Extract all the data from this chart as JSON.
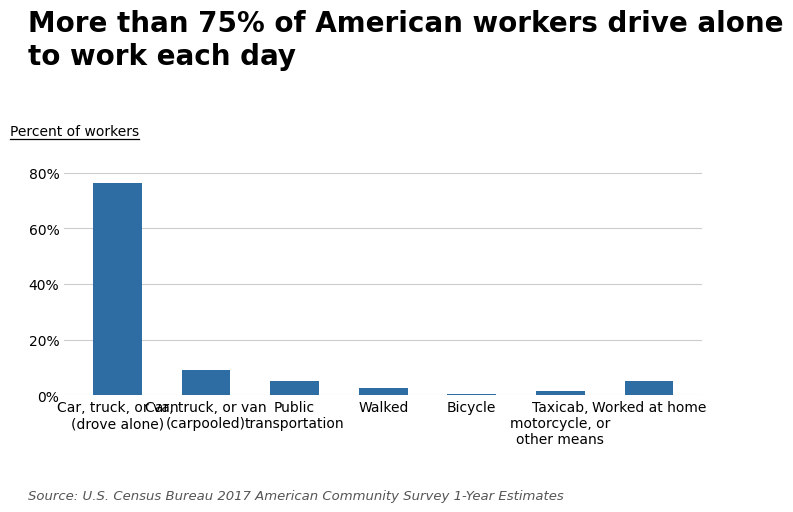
{
  "categories": [
    "Car, truck, or van\n(drove alone)",
    "Car, truck, or van\n(carpooled)",
    "Public\ntransportation",
    "Walked",
    "Bicycle",
    "Taxicab,\nmotorcycle, or\nother means",
    "Worked at home"
  ],
  "values": [
    76.4,
    9.0,
    5.1,
    2.8,
    0.6,
    1.5,
    5.0
  ],
  "bar_color": "#2E6DA4",
  "title": "More than 75% of American workers drive alone\nto work each day",
  "ylabel": "Percent of workers",
  "yticks": [
    0,
    20,
    40,
    60,
    80
  ],
  "ylim": [
    0,
    84
  ],
  "source": "Source: U.S. Census Bureau 2017 American Community Survey 1-Year Estimates",
  "background_color": "#ffffff",
  "title_fontsize": 20,
  "ylabel_fontsize": 10,
  "tick_fontsize": 10,
  "source_fontsize": 9.5
}
